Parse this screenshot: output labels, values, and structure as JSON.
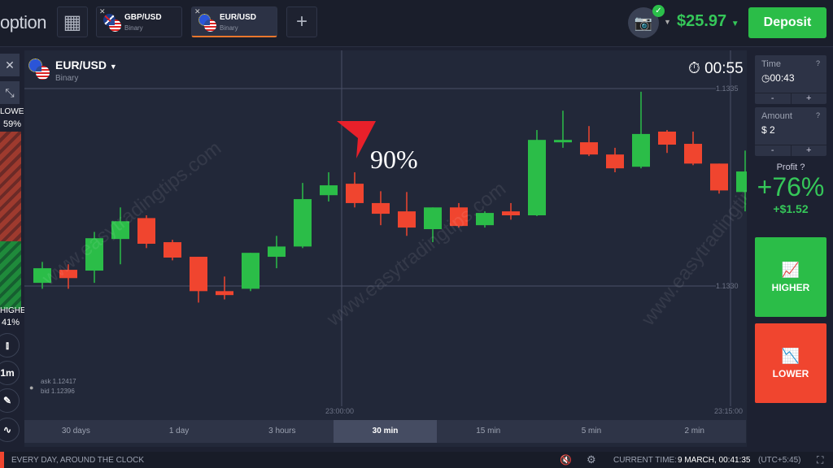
{
  "header": {
    "logo": "option",
    "tabs": [
      {
        "pair": "GBP/USD",
        "type": "Binary",
        "active": false
      },
      {
        "pair": "EUR/USD",
        "type": "Binary",
        "active": true
      }
    ],
    "add_tab": "+",
    "balance": "$25.97",
    "deposit": "Deposit"
  },
  "asset": {
    "pair": "EUR/USD",
    "type": "Binary",
    "timer": "00:55"
  },
  "sentiment": {
    "lower_label": "LOWER",
    "lower_pct": "59%",
    "higher_label": "HIGHER",
    "higher_pct": "41%",
    "lower_value": 59,
    "higher_value": 41
  },
  "tools": {
    "timeframe": "1m"
  },
  "quotes": {
    "ask": "ask 1.12417",
    "bid": "bid 1.12396"
  },
  "annotation": {
    "label": "90%",
    "color": "#e8202a"
  },
  "watermark": "www.easytradingtips.com",
  "timeframes": [
    {
      "label": "30 days"
    },
    {
      "label": "1 day"
    },
    {
      "label": "3 hours"
    },
    {
      "label": "30 min",
      "selected": true
    },
    {
      "label": "15 min"
    },
    {
      "label": "5 min"
    },
    {
      "label": "2 min"
    }
  ],
  "panel": {
    "time_label": "Time",
    "time_value": "00:43",
    "amount_label": "Amount",
    "amount_value": "$ 2",
    "minus": "-",
    "plus": "+",
    "profit_label": "Profit",
    "profit_pct": "+76%",
    "profit_amount": "+$1.52",
    "higher": "HIGHER",
    "lower": "LOWER"
  },
  "footer": {
    "slogan": "EVERY DAY, AROUND THE CLOCK",
    "current_time_label": "CURRENT TIME:",
    "current_time": "9 MARCH, 00:41:35",
    "tz": "(UTC+5:45)"
  },
  "colors": {
    "up": "#2bbd48",
    "down": "#f0452f",
    "accent": "#e9772d"
  },
  "chart_data": {
    "type": "candlestick",
    "interval": "1m",
    "y_ticks": [
      "1.1335",
      "1.1330"
    ],
    "x_ticks": [
      "23:00:00",
      "23:15:00"
    ],
    "ylim": [
      1.1328,
      1.1337
    ],
    "candles": [
      [
        1.133008,
        1.133061,
        1.132993,
        1.133045
      ],
      [
        1.133041,
        1.133055,
        1.132993,
        1.13302
      ],
      [
        1.133039,
        1.133137,
        1.133008,
        1.133121
      ],
      [
        1.133119,
        1.133199,
        1.133055,
        1.133164
      ],
      [
        1.133172,
        1.133179,
        1.133096,
        1.133107
      ],
      [
        1.133111,
        1.133117,
        1.133065,
        1.133072
      ],
      [
        1.133074,
        1.133074,
        1.132958,
        1.132987
      ],
      [
        1.132987,
        1.133024,
        1.132966,
        1.132977
      ],
      [
        1.132993,
        1.133084,
        1.132987,
        1.133084
      ],
      [
        1.133074,
        1.133127,
        1.133045,
        1.1331
      ],
      [
        1.1331,
        1.133261,
        1.133096,
        1.13322
      ],
      [
        1.13323,
        1.133288,
        1.133214,
        1.133255
      ],
      [
        1.133259,
        1.133288,
        1.133199,
        1.13321
      ],
      [
        1.13321,
        1.13324,
        1.133154,
        1.133183
      ],
      [
        1.133189,
        1.133238,
        1.133127,
        1.133148
      ],
      [
        1.133144,
        1.133199,
        1.133111,
        1.133199
      ],
      [
        1.133199,
        1.13321,
        1.133148,
        1.133152
      ],
      [
        1.133154,
        1.133189,
        1.133148,
        1.133185
      ],
      [
        1.133189,
        1.13321,
        1.133168,
        1.133179
      ],
      [
        1.133179,
        1.133395,
        1.133177,
        1.13337
      ],
      [
        1.133364,
        1.133444,
        1.13335,
        1.13337
      ],
      [
        1.133364,
        1.133405,
        1.133329,
        1.133333
      ],
      [
        1.133333,
        1.13335,
        1.133288,
        1.133298
      ],
      [
        1.133302,
        1.133492,
        1.133298,
        1.133385
      ],
      [
        1.133391,
        1.133395,
        1.133337,
        1.133358
      ],
      [
        1.13336,
        1.133391,
        1.133306,
        1.13331
      ],
      [
        1.13331,
        1.13331,
        1.133234,
        1.133242
      ],
      [
        1.133238,
        1.133343,
        1.133189,
        1.13329
      ]
    ]
  }
}
